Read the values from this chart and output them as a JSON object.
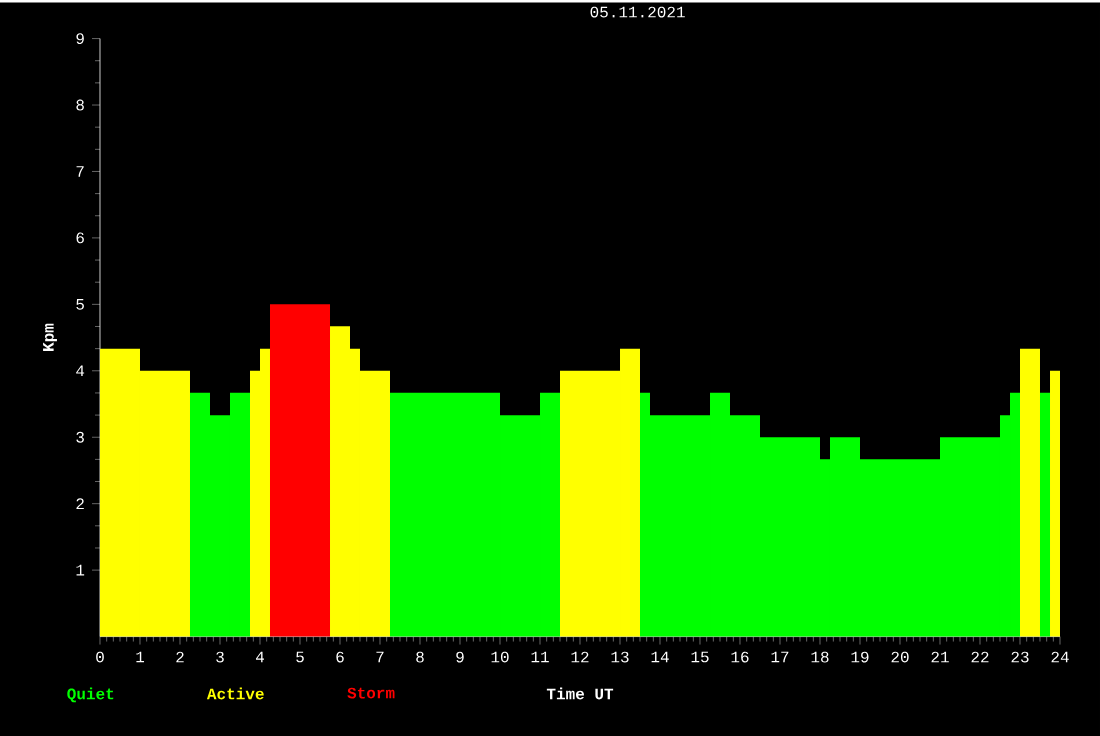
{
  "chart_data": {
    "type": "histogram",
    "title": "05.11.2021",
    "xlabel": "Time UT",
    "ylabel": "Kpm",
    "bins": [
      0,
      1,
      2.25,
      2.75,
      3.25,
      3.75,
      4,
      4.25,
      5.75,
      6.25,
      6.5,
      7.25,
      10,
      11,
      11.5,
      13,
      13.5,
      13.75,
      15.25,
      15.75,
      16.5,
      18,
      18.25,
      19,
      21,
      22.5,
      22.75,
      23,
      23.5,
      23.75,
      24
    ],
    "series": [
      {
        "name": "Quiet",
        "color": "#00ff00",
        "values": [
          null,
          null,
          3.67,
          3.33,
          3.67,
          null,
          null,
          null,
          null,
          null,
          null,
          3.67,
          3.33,
          3.67,
          null,
          null,
          3.67,
          3.33,
          3.67,
          3.33,
          3,
          2.67,
          3,
          2.67,
          3,
          3.33,
          3.67,
          null,
          3.67,
          null
        ]
      },
      {
        "name": "Active",
        "color": "#ffff00",
        "values": [
          4.33,
          4,
          null,
          null,
          null,
          4,
          4.33,
          null,
          4.67,
          4.33,
          4,
          null,
          null,
          null,
          4,
          4.33,
          null,
          null,
          null,
          null,
          null,
          null,
          null,
          null,
          null,
          null,
          null,
          4.33,
          null,
          4
        ]
      },
      {
        "name": "Storm",
        "color": "#ff0000",
        "values": [
          null,
          null,
          null,
          null,
          null,
          null,
          null,
          5,
          null,
          null,
          null,
          null,
          null,
          null,
          null,
          null,
          null,
          null,
          null,
          null,
          null,
          null,
          null,
          null,
          null,
          null,
          null,
          null,
          null,
          null
        ]
      }
    ],
    "xlim": [
      0,
      24
    ],
    "ylim": [
      0,
      9
    ],
    "xticks": [
      0,
      1,
      2,
      3,
      4,
      5,
      6,
      7,
      8,
      9,
      10,
      11,
      12,
      13,
      14,
      15,
      16,
      17,
      18,
      19,
      20,
      21,
      22,
      23,
      24
    ],
    "yticks": [
      1,
      2,
      3,
      4,
      5,
      6,
      7,
      8,
      9
    ],
    "legend": "bottom left"
  }
}
